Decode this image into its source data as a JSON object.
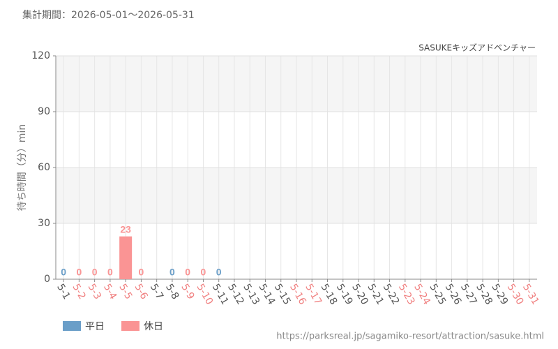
{
  "chart_data": {
    "type": "bar",
    "header": "集計期間：2026-05-01～2026-05-31",
    "title": "SASUKEキッズアドベンチャー",
    "y_label": "待ち時間（分）min",
    "footer": "https://parksreal.jp/sagamiko-resort/attraction/sasuke.html",
    "categories": [
      "5-1",
      "5-2",
      "5-3",
      "5-4",
      "5-5",
      "5-6",
      "5-7",
      "5-8",
      "5-9",
      "5-10",
      "5-11",
      "5-12",
      "5-13",
      "5-14",
      "5-15",
      "5-16",
      "5-17",
      "5-18",
      "5-19",
      "5-20",
      "5-21",
      "5-22",
      "5-23",
      "5-24",
      "5-25",
      "5-26",
      "5-27",
      "5-28",
      "5-29",
      "5-30",
      "5-31"
    ],
    "category_colors": [
      "#555555",
      "#f08080",
      "#f08080",
      "#f08080",
      "#f08080",
      "#f08080",
      "#555555",
      "#555555",
      "#f08080",
      "#f08080",
      "#555555",
      "#555555",
      "#555555",
      "#555555",
      "#555555",
      "#f08080",
      "#f08080",
      "#555555",
      "#555555",
      "#555555",
      "#555555",
      "#555555",
      "#f08080",
      "#f08080",
      "#555555",
      "#555555",
      "#555555",
      "#555555",
      "#555555",
      "#f08080",
      "#f08080"
    ],
    "series": [
      {
        "name": "平日",
        "color": "#6a9ec8",
        "values": [
          0,
          null,
          null,
          null,
          null,
          null,
          null,
          0,
          null,
          null,
          0,
          null,
          null,
          null,
          null,
          null,
          null,
          null,
          null,
          null,
          null,
          null,
          null,
          null,
          null,
          null,
          null,
          null,
          null,
          null,
          null
        ]
      },
      {
        "name": "休日",
        "color": "#fa9494",
        "values": [
          null,
          0,
          0,
          0,
          23,
          0,
          null,
          null,
          0,
          0,
          null,
          null,
          null,
          null,
          null,
          null,
          null,
          null,
          null,
          null,
          null,
          null,
          null,
          null,
          null,
          null,
          null,
          null,
          null,
          null,
          null
        ]
      }
    ],
    "ylim": [
      0,
      120
    ],
    "yticks": [
      0,
      30,
      60,
      90,
      120
    ],
    "grid": true
  }
}
